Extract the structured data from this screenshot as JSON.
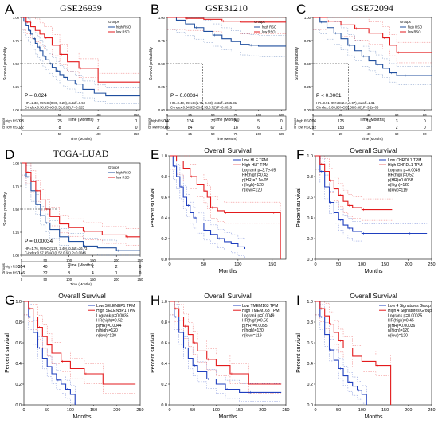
{
  "chart_data": [
    {
      "id": "A",
      "style": "geo",
      "type": "line",
      "panel_letter": "A",
      "title": "GSE26939",
      "ylabel": "Survival probability",
      "xlabel": "Time (Months)",
      "x_ticks": [
        "0",
        "50",
        "100",
        "150"
      ],
      "y_ticks": [
        "0.00",
        "0.25",
        "0.50",
        "0.75",
        "1.00"
      ],
      "xlim": [
        0,
        155
      ],
      "ylim": [
        0,
        1
      ],
      "legend": {
        "title": "Groups",
        "items": [
          "high RSO",
          "low RSO"
        ]
      },
      "series": [
        {
          "name": "high RSO",
          "color": "#1f4e9e",
          "x": [
            0,
            3,
            6,
            9,
            12,
            15,
            18,
            21,
            24,
            28,
            32,
            36,
            40,
            45,
            50,
            55,
            60,
            70,
            80,
            95,
            110,
            155
          ],
          "y": [
            1,
            0.96,
            0.91,
            0.86,
            0.82,
            0.77,
            0.72,
            0.68,
            0.64,
            0.58,
            0.54,
            0.5,
            0.46,
            0.42,
            0.38,
            0.35,
            0.32,
            0.28,
            0.22,
            0.18,
            0.15,
            0.15
          ]
        },
        {
          "name": "low RSO",
          "color": "#e31a1c",
          "x": [
            0,
            6,
            12,
            18,
            24,
            30,
            40,
            50,
            60,
            75,
            100,
            120,
            155
          ],
          "y": [
            1,
            0.95,
            0.9,
            0.86,
            0.82,
            0.78,
            0.7,
            0.6,
            0.52,
            0.45,
            0.3,
            0.3,
            0.3
          ]
        }
      ],
      "p_text": "P = 0.024",
      "stats": [
        "HR=2.33, 95%CI(0.86, 6.28), cutoff=0.59",
        "C-index:0.58,95%CI(0.51,0.66),P=0.025"
      ],
      "risk_ylabel": "Groups",
      "risk_rows": [
        {
          "name": "high RSO",
          "values": [
            "93",
            "25",
            "7",
            "1"
          ]
        },
        {
          "name": "low RSO",
          "values": [
            "22",
            "8",
            "2",
            "0"
          ]
        }
      ]
    },
    {
      "id": "B",
      "style": "geo",
      "type": "line",
      "panel_letter": "B",
      "title": "GSE31210",
      "ylabel": "Survival probability",
      "xlabel": "Time (Months)",
      "x_ticks": [
        "0",
        "25",
        "50",
        "75",
        "100",
        "125"
      ],
      "y_ticks": [
        "0.00",
        "0.25",
        "0.50",
        "0.75",
        "1.00"
      ],
      "xlim": [
        0,
        130
      ],
      "ylim": [
        0,
        1
      ],
      "legend": {
        "title": "Groups",
        "items": [
          "high RSO",
          "low RSO"
        ]
      },
      "series": [
        {
          "name": "high RSO",
          "color": "#1f4e9e",
          "x": [
            0,
            10,
            20,
            30,
            40,
            50,
            60,
            70,
            80,
            90,
            100,
            130
          ],
          "y": [
            1,
            0.97,
            0.93,
            0.89,
            0.85,
            0.81,
            0.77,
            0.74,
            0.71,
            0.7,
            0.69,
            0.69
          ]
        },
        {
          "name": "low RSO",
          "color": "#e31a1c",
          "x": [
            0,
            20,
            40,
            60,
            80,
            100,
            130
          ],
          "y": [
            1,
            0.99,
            0.98,
            0.96,
            0.95,
            0.95,
            0.95
          ]
        }
      ],
      "p_text": "P = 0.00034",
      "stats": [
        "HR=3.43, 95%CI(1.75, 6.73), cutoff=1045.31",
        "C-index:0.64,95%CI(0.55,0.72),P=0.0015"
      ],
      "risk_ylabel": "Groups",
      "risk_rows": [
        {
          "name": "high RSO",
          "values": [
            "140",
            "124",
            "76",
            "26",
            "5",
            "0"
          ]
        },
        {
          "name": "low RSO",
          "values": [
            "86",
            "84",
            "67",
            "18",
            "6",
            "1"
          ]
        }
      ]
    },
    {
      "id": "C",
      "style": "geo",
      "type": "line",
      "panel_letter": "C",
      "title": "GSE72094",
      "ylabel": "Survival probability",
      "xlabel": "Time (Months)",
      "x_ticks": [
        "0",
        "20",
        "40",
        "60",
        "80"
      ],
      "y_ticks": [
        "0.00",
        "0.25",
        "0.50",
        "0.75",
        "1.00"
      ],
      "xlim": [
        0,
        85
      ],
      "ylim": [
        0,
        1
      ],
      "legend": {
        "title": "Groups",
        "items": [
          "high RSO",
          "low RSO"
        ]
      },
      "series": [
        {
          "name": "high RSO",
          "color": "#1f4e9e",
          "x": [
            0,
            5,
            10,
            15,
            20,
            25,
            30,
            35,
            40,
            45,
            50,
            55,
            60,
            65,
            85
          ],
          "y": [
            1,
            0.95,
            0.89,
            0.83,
            0.77,
            0.7,
            0.64,
            0.58,
            0.53,
            0.49,
            0.45,
            0.4,
            0.37,
            0.37,
            0.37
          ]
        },
        {
          "name": "low RSO",
          "color": "#e31a1c",
          "x": [
            0,
            10,
            20,
            30,
            40,
            50,
            55,
            60,
            85
          ],
          "y": [
            1,
            0.96,
            0.92,
            0.88,
            0.83,
            0.78,
            0.7,
            0.62,
            0.62
          ]
        }
      ],
      "p_text": "P < 0.0001",
      "stats": [
        "HR=3.91, 95%CI(2.2, 6.97), cutoff=2.61",
        "C-index:0.63,95%CI(0.58,0.68),P=3.2e-06"
      ],
      "risk_ylabel": "Groups",
      "risk_rows": [
        {
          "name": "high RSO",
          "values": [
            "206",
            "125",
            "16",
            "3",
            "0"
          ]
        },
        {
          "name": "low RSO",
          "values": [
            "192",
            "153",
            "30",
            "2",
            "0"
          ]
        }
      ]
    },
    {
      "id": "D",
      "style": "geo",
      "type": "line",
      "panel_letter": "D",
      "title": "TCGA-LUAD",
      "ylabel": "Survival probability",
      "xlabel": "Time (Months)",
      "x_ticks": [
        "0",
        "50",
        "100",
        "150",
        "200",
        "250"
      ],
      "y_ticks": [
        "0.00",
        "0.25",
        "0.50",
        "0.75",
        "1.00"
      ],
      "xlim": [
        0,
        250
      ],
      "ylim": [
        0,
        1
      ],
      "legend": {
        "title": "Groups",
        "items": [
          "high RSO",
          "low RSO"
        ]
      },
      "series": [
        {
          "name": "high RSO",
          "color": "#1f4e9e",
          "x": [
            0,
            10,
            20,
            30,
            40,
            50,
            60,
            80,
            100,
            130,
            160,
            200,
            250
          ],
          "y": [
            1,
            0.85,
            0.7,
            0.55,
            0.43,
            0.35,
            0.28,
            0.2,
            0.15,
            0.1,
            0.08,
            0.05,
            0.05
          ]
        },
        {
          "name": "low RSO",
          "color": "#e31a1c",
          "x": [
            0,
            10,
            20,
            30,
            40,
            50,
            60,
            80,
            100,
            130,
            170,
            220,
            250
          ],
          "y": [
            1,
            0.9,
            0.8,
            0.7,
            0.6,
            0.5,
            0.42,
            0.34,
            0.3,
            0.26,
            0.22,
            0.2,
            0.2
          ]
        }
      ],
      "p_text": "P = 0.00034",
      "stats": [
        "HR=1.76, 95%CI(1.29, 2.40), cutoff=36.73",
        "C-index:0.57,95%CI(0.52,0.61),P=0.0046"
      ],
      "risk_ylabel": "Groups",
      "risk_rows": [
        {
          "name": "high RSO",
          "values": [
            "354",
            "40",
            "8",
            "2",
            "2",
            "0"
          ]
        },
        {
          "name": "low RSO",
          "values": [
            "146",
            "32",
            "8",
            "4",
            "1",
            "0"
          ]
        }
      ]
    },
    {
      "id": "E",
      "style": "gepia",
      "type": "line",
      "panel_letter": "E",
      "title": "Overall Survival",
      "ylabel": "Percent survival",
      "xlabel": "Months",
      "x_ticks": [
        "0",
        "50",
        "100",
        "150"
      ],
      "y_ticks": [
        "0.0",
        "0.2",
        "0.4",
        "0.6",
        "0.8",
        "1.0"
      ],
      "xlim": [
        0,
        170
      ],
      "ylim": [
        0,
        1
      ],
      "legend": {
        "items": [
          "Low HLF TPM",
          "High HLF TPM"
        ]
      },
      "stats": [
        "Logrank p=3.7e-05",
        "HR(high)=0.42",
        "p(HR)=7.1e-05",
        "n(high)=120",
        "n(low)=120"
      ],
      "series": [
        {
          "name": "Low HLF TPM",
          "color": "#1f3fbf",
          "x": [
            0,
            5,
            10,
            15,
            20,
            25,
            30,
            35,
            40,
            50,
            60,
            70,
            80,
            90,
            100,
            110
          ],
          "y": [
            1,
            0.9,
            0.8,
            0.7,
            0.6,
            0.52,
            0.45,
            0.4,
            0.35,
            0.28,
            0.24,
            0.2,
            0.17,
            0.15,
            0.12,
            0.1
          ]
        },
        {
          "name": "High HLF TPM",
          "color": "#e31a1c",
          "x": [
            0,
            10,
            20,
            30,
            40,
            50,
            55,
            60,
            70,
            80,
            100,
            150,
            160,
            162
          ],
          "y": [
            1,
            0.95,
            0.88,
            0.8,
            0.72,
            0.66,
            0.6,
            0.5,
            0.47,
            0.45,
            0.45,
            0.45,
            0.45,
            0
          ]
        }
      ]
    },
    {
      "id": "F",
      "style": "gepia",
      "type": "line",
      "panel_letter": "F",
      "title": "Overall Survival",
      "ylabel": "Percent survival",
      "xlabel": "Months",
      "x_ticks": [
        "0",
        "50",
        "100",
        "150",
        "200",
        "250"
      ],
      "y_ticks": [
        "0.0",
        "0.2",
        "0.4",
        "0.6",
        "0.8",
        "1.0"
      ],
      "xlim": [
        0,
        250
      ],
      "ylim": [
        0,
        1
      ],
      "legend": {
        "items": [
          "Low CHRDL1 TPM",
          "High CHRDL1 TPM"
        ]
      },
      "stats": [
        "Logrank p=0.0049",
        "HR(high)=0.52",
        "p(HR)=0.0058",
        "n(high)=120",
        "n(low)=119"
      ],
      "series": [
        {
          "name": "Low CHRDL1 TPM",
          "color": "#1f3fbf",
          "x": [
            0,
            10,
            20,
            30,
            40,
            50,
            60,
            70,
            80,
            100,
            150,
            200,
            240
          ],
          "y": [
            1,
            0.85,
            0.7,
            0.55,
            0.45,
            0.38,
            0.33,
            0.3,
            0.27,
            0.25,
            0.25,
            0.25,
            0.25
          ]
        },
        {
          "name": "High CHRDL1 TPM",
          "color": "#e31a1c",
          "x": [
            0,
            10,
            20,
            30,
            40,
            50,
            60,
            70,
            80,
            100,
            130,
            165
          ],
          "y": [
            1,
            0.92,
            0.85,
            0.76,
            0.68,
            0.62,
            0.56,
            0.52,
            0.5,
            0.48,
            0.48,
            0.48
          ]
        }
      ]
    },
    {
      "id": "G",
      "style": "gepia",
      "type": "line",
      "panel_letter": "G",
      "title": "Overall Survival",
      "ylabel": "Percent survival",
      "xlabel": "Months",
      "x_ticks": [
        "0",
        "50",
        "100",
        "150",
        "200",
        "250"
      ],
      "y_ticks": [
        "0.0",
        "0.2",
        "0.4",
        "0.6",
        "0.8",
        "1.0"
      ],
      "xlim": [
        0,
        250
      ],
      "ylim": [
        0,
        1
      ],
      "legend": {
        "items": [
          "Low SELENBP1 TPM",
          "High SELENBP1 TPM"
        ]
      },
      "stats": [
        "Logrank p=0.0035",
        "HR(high)=0.52",
        "p(HR)=0.0044",
        "n(high)=120",
        "n(low)=120"
      ],
      "series": [
        {
          "name": "Low SELENBP1 TPM",
          "color": "#1f3fbf",
          "x": [
            0,
            10,
            20,
            30,
            40,
            50,
            60,
            70,
            80,
            90,
            100,
            110
          ],
          "y": [
            1,
            0.85,
            0.7,
            0.55,
            0.45,
            0.37,
            0.3,
            0.24,
            0.2,
            0.15,
            0.1,
            0
          ]
        },
        {
          "name": "High SELENBP1 TPM",
          "color": "#e31a1c",
          "x": [
            0,
            10,
            20,
            30,
            40,
            50,
            60,
            80,
            100,
            130,
            170,
            240
          ],
          "y": [
            1,
            0.93,
            0.85,
            0.75,
            0.66,
            0.58,
            0.5,
            0.42,
            0.35,
            0.3,
            0.2,
            0.2
          ]
        }
      ]
    },
    {
      "id": "H",
      "style": "gepia",
      "type": "line",
      "panel_letter": "H",
      "title": "Overall Survival",
      "ylabel": "Percent survival",
      "xlabel": "Months",
      "x_ticks": [
        "0",
        "50",
        "100",
        "150",
        "200",
        "250"
      ],
      "y_ticks": [
        "0.0",
        "0.2",
        "0.4",
        "0.6",
        "0.8",
        "1.0"
      ],
      "xlim": [
        0,
        250
      ],
      "ylim": [
        0,
        1
      ],
      "legend": {
        "items": [
          "Low TMEM163 TPM",
          "High TMEM163 TPM"
        ]
      },
      "stats": [
        "Logrank p=0.0049",
        "HR(high)=0.56",
        "p(HR)=0.0055",
        "n(high)=120",
        "n(low)=119"
      ],
      "series": [
        {
          "name": "Low TMEM163 TPM",
          "color": "#1f3fbf",
          "x": [
            0,
            10,
            20,
            30,
            40,
            50,
            60,
            80,
            100,
            120,
            150,
            170,
            240
          ],
          "y": [
            1,
            0.85,
            0.7,
            0.55,
            0.45,
            0.38,
            0.32,
            0.25,
            0.2,
            0.15,
            0.12,
            0.12,
            0.12
          ]
        },
        {
          "name": "High TMEM163 TPM",
          "color": "#e31a1c",
          "x": [
            0,
            10,
            20,
            30,
            40,
            50,
            60,
            80,
            100,
            130,
            170,
            240
          ],
          "y": [
            1,
            0.93,
            0.85,
            0.76,
            0.68,
            0.6,
            0.52,
            0.44,
            0.38,
            0.3,
            0.2,
            0.2
          ]
        }
      ]
    },
    {
      "id": "I",
      "style": "gepia",
      "type": "line",
      "panel_letter": "I",
      "title": "Overall Survival",
      "ylabel": "Percent survival",
      "xlabel": "Months",
      "x_ticks": [
        "0",
        "50",
        "100",
        "150",
        "200",
        "250"
      ],
      "y_ticks": [
        "0.0",
        "0.2",
        "0.4",
        "0.6",
        "0.8",
        "1.0"
      ],
      "xlim": [
        0,
        250
      ],
      "ylim": [
        0,
        1
      ],
      "legend": {
        "items": [
          "Low 4 Signatures Group",
          "High 4 Signatures Group"
        ]
      },
      "stats": [
        "Logrank p=0.00025",
        "HR(high)=0.45",
        "p(HR)=0.00036",
        "n(high)=120",
        "n(low)=120"
      ],
      "series": [
        {
          "name": "Low 4 Signatures Group",
          "color": "#1f3fbf",
          "x": [
            0,
            10,
            20,
            30,
            40,
            50,
            60,
            70,
            80,
            90,
            100,
            110
          ],
          "y": [
            1,
            0.85,
            0.68,
            0.53,
            0.43,
            0.35,
            0.28,
            0.22,
            0.18,
            0.14,
            0.1,
            0
          ]
        },
        {
          "name": "High 4 Signatures Group",
          "color": "#e31a1c",
          "x": [
            0,
            10,
            20,
            30,
            40,
            50,
            60,
            80,
            100,
            130,
            160,
            162
          ],
          "y": [
            1,
            0.93,
            0.86,
            0.78,
            0.7,
            0.62,
            0.55,
            0.47,
            0.42,
            0.38,
            0.38,
            0
          ]
        }
      ]
    }
  ]
}
